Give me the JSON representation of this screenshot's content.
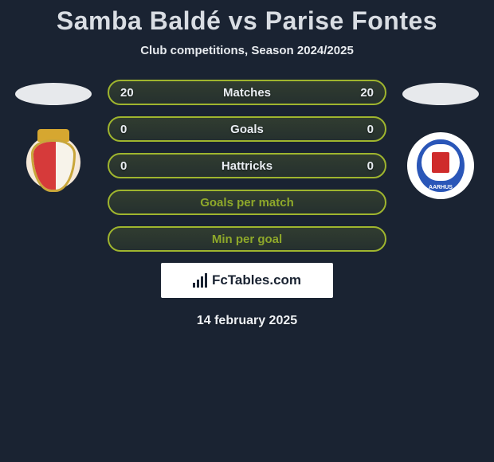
{
  "page": {
    "background_color": "#1a2332",
    "text_color": "#ffffff",
    "accent_border": "#9fb52e",
    "pill_label_color": "#e9edf2"
  },
  "header": {
    "title": "Samba Baldé vs Parise Fontes",
    "subtitle": "Club competitions, Season 2024/2025"
  },
  "players": {
    "left": {
      "name": "Samba Baldé",
      "player_oval_color": "#e7e9ec",
      "club_name": "FC Penafiel",
      "crest_colors": {
        "shield_bg": "#f7f3ea",
        "shield_border": "#c9a63a",
        "half": "#d63a3a",
        "crown": "#d6a730"
      }
    },
    "right": {
      "name": "Parise Fontes",
      "player_oval_color": "#e7e9ec",
      "club_name": "AGF Aarhus",
      "crest_colors": {
        "outer": "#ffffff",
        "inner": "#2a56b8",
        "flag": "#cf2b2b"
      },
      "crest_text": "AARHUS"
    }
  },
  "stats": {
    "type": "comparison-pill-list",
    "pill_height": 32,
    "pill_border_color": "#9fb52e",
    "pill_radius": 16,
    "font_size": 15,
    "rows": [
      {
        "left": "20",
        "label": "Matches",
        "right": "20"
      },
      {
        "left": "0",
        "label": "Goals",
        "right": "0"
      },
      {
        "left": "0",
        "label": "Hattricks",
        "right": "0"
      },
      {
        "left": "",
        "label": "Goals per match",
        "right": ""
      },
      {
        "left": "",
        "label": "Min per goal",
        "right": ""
      }
    ]
  },
  "brand": {
    "text": "FcTables.com",
    "box_bg": "#ffffff",
    "text_color": "#1a2332"
  },
  "footer": {
    "date": "14 february 2025"
  }
}
